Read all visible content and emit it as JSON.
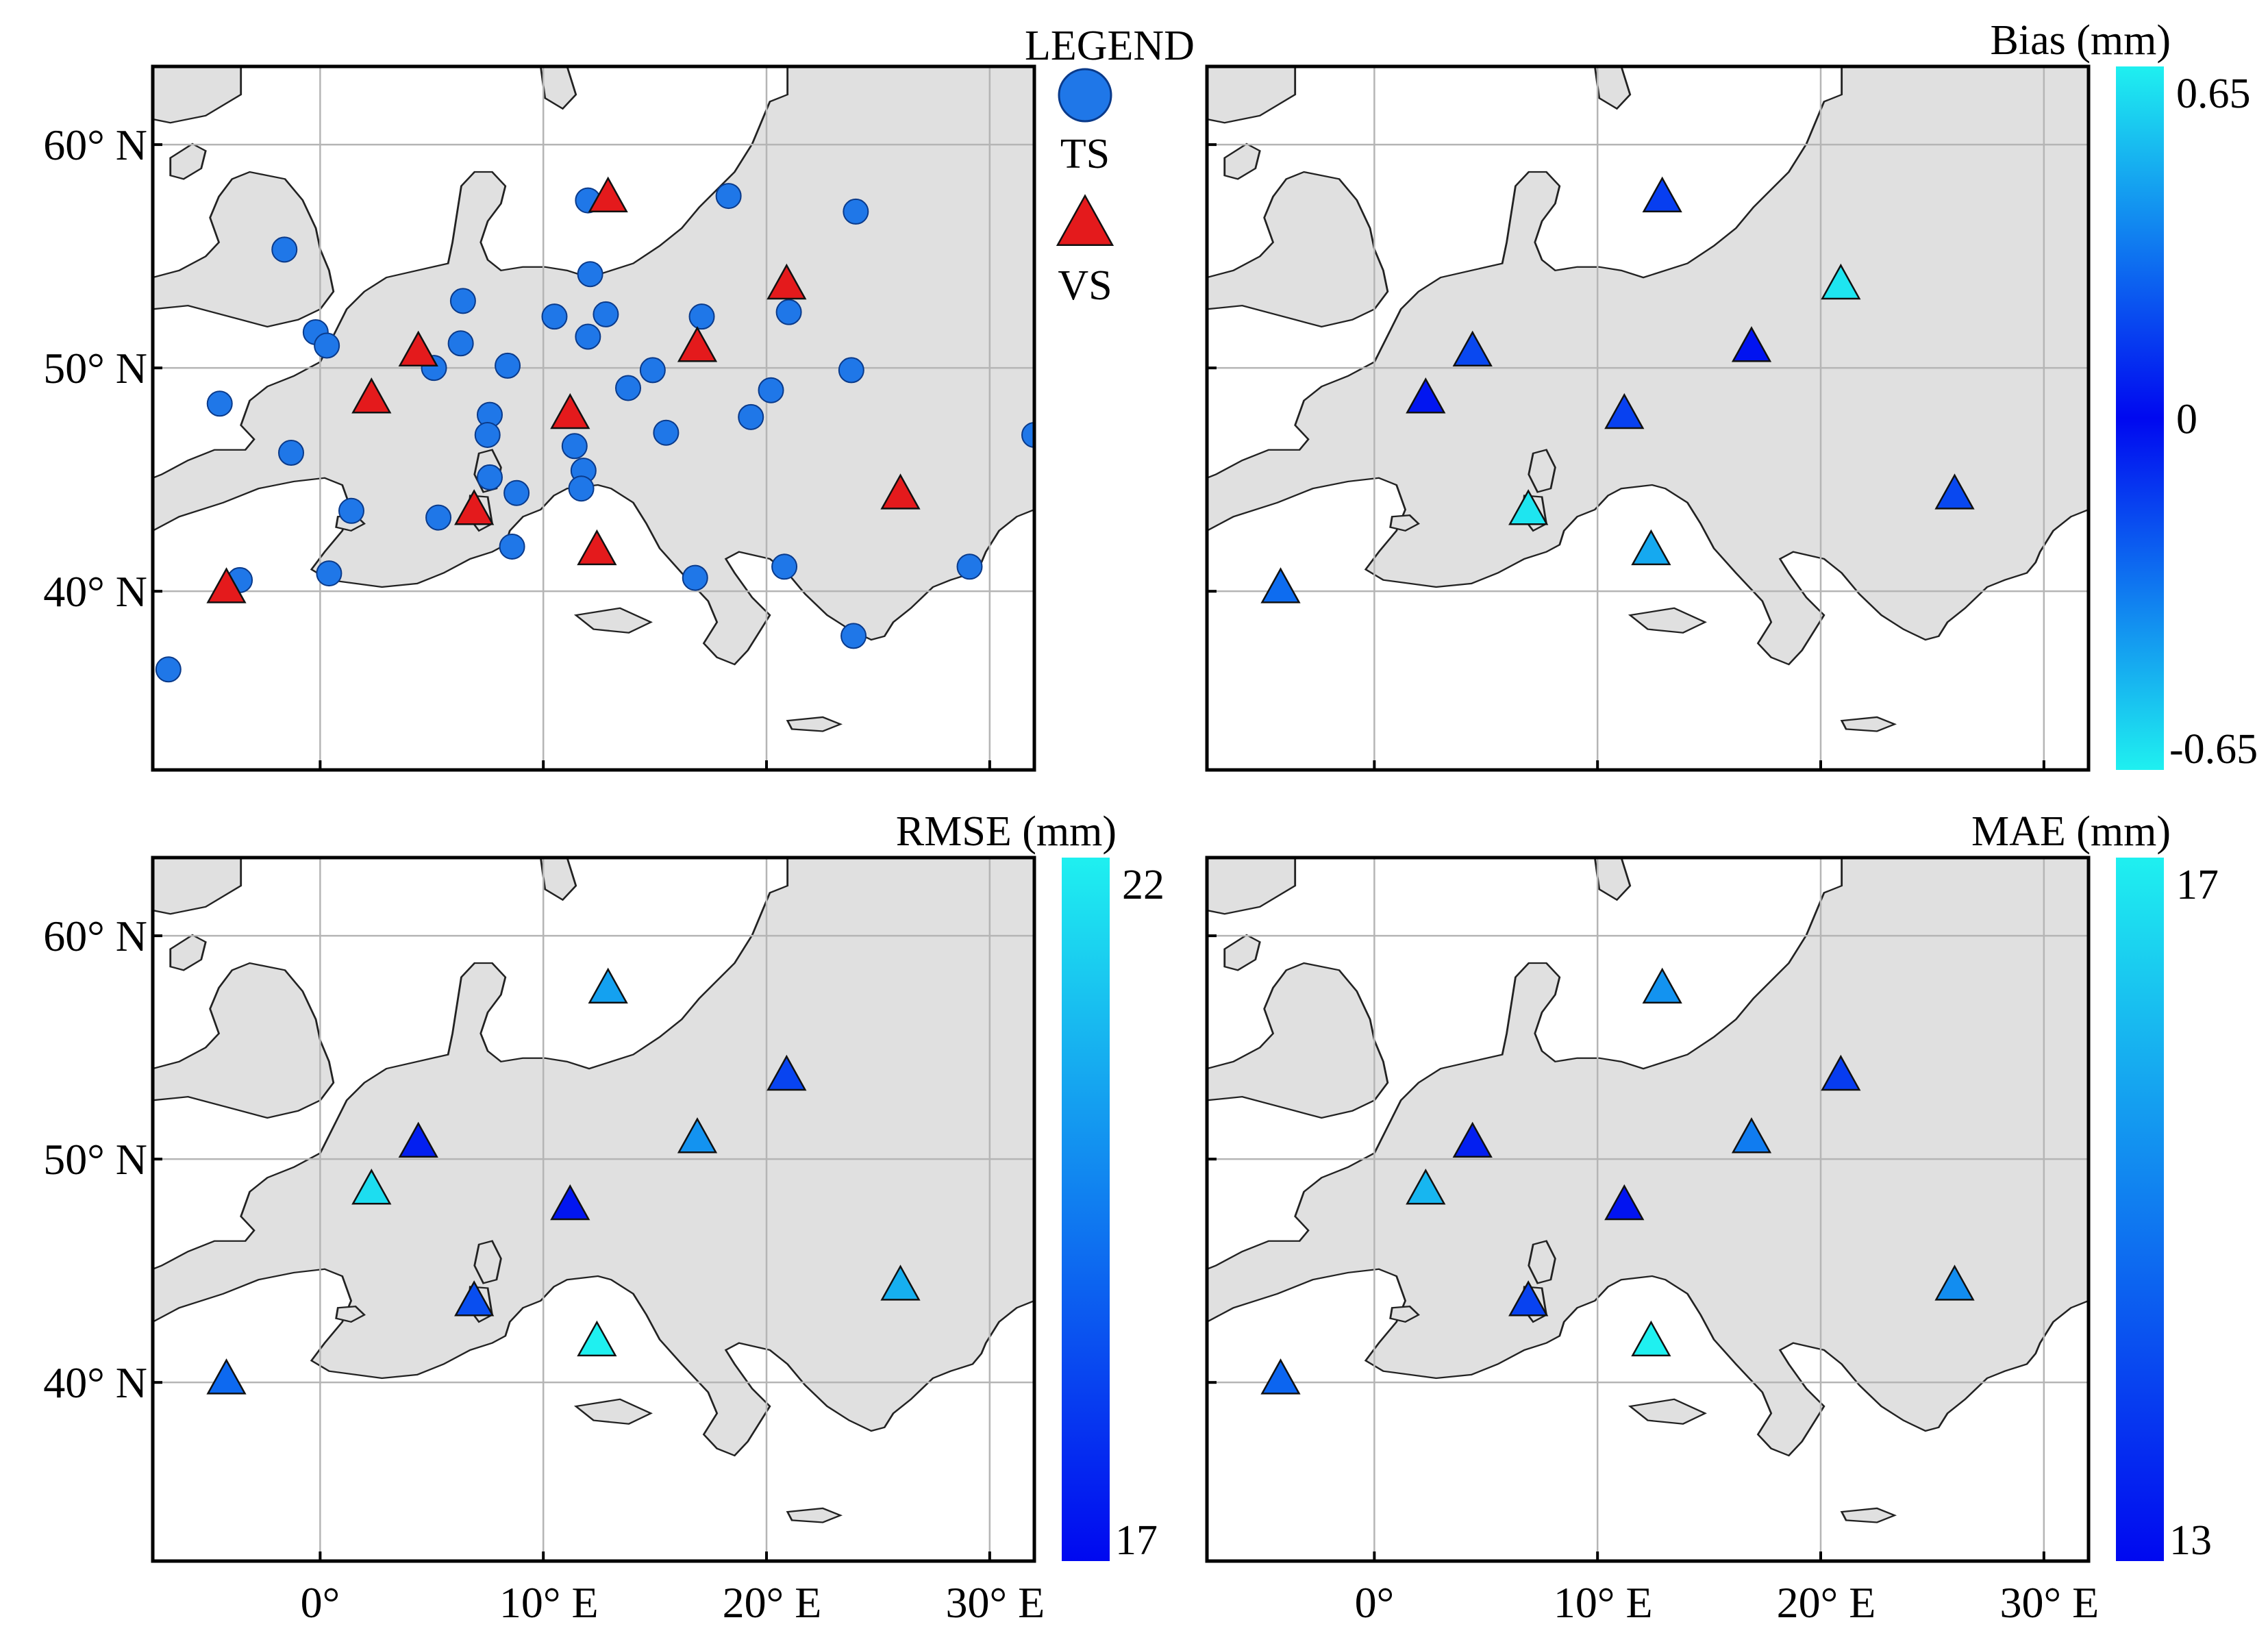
{
  "legend": {
    "title": "LEGEND",
    "ts_label": "TS",
    "vs_label": "VS",
    "ts_color": "#1f77e8",
    "vs_color": "#e41a1c"
  },
  "axes": {
    "lat_labels": [
      "60° N",
      "50° N",
      "40° N"
    ],
    "lon_labels": [
      "0°",
      "10° E",
      "20° E",
      "30° E"
    ]
  },
  "panels": {
    "bias": {
      "title": "Bias (mm)",
      "max": "0.65",
      "mid": "0",
      "min": "-0.65"
    },
    "rmse": {
      "title": "RMSE (mm)",
      "max": "22",
      "min": "17"
    },
    "mae": {
      "title": "MAE (mm)",
      "max": "17",
      "min": "13"
    }
  },
  "colors": {
    "land": "#e0e0e0",
    "sea": "#ffffff",
    "grid": "#b5b5b5",
    "coast": "#222222",
    "scale_low": "#0008f0",
    "scale_high": "#1ff0f0"
  },
  "map_extent": {
    "lon": [
      -7.5,
      32
    ],
    "lat": [
      32,
      63.5
    ]
  },
  "ts_stations": [
    [
      -1.6,
      55.3
    ],
    [
      -0.2,
      51.6
    ],
    [
      0.3,
      51
    ],
    [
      -4.5,
      48.4
    ],
    [
      -1.3,
      46.2
    ],
    [
      1.4,
      43.6
    ],
    [
      0.4,
      40.8
    ],
    [
      -3.6,
      40.5
    ],
    [
      -6.8,
      36.5
    ],
    [
      5.1,
      50
    ],
    [
      6.3,
      51.1
    ],
    [
      6.4,
      53
    ],
    [
      8.4,
      50.1
    ],
    [
      7.6,
      47.9
    ],
    [
      7.5,
      47
    ],
    [
      7.6,
      45.1
    ],
    [
      8.8,
      44.4
    ],
    [
      5.3,
      43.3
    ],
    [
      8.6,
      42
    ],
    [
      10.5,
      52.3
    ],
    [
      12,
      51.4
    ],
    [
      12.8,
      52.4
    ],
    [
      12.1,
      54.2
    ],
    [
      12,
      57.5
    ],
    [
      13.8,
      49.1
    ],
    [
      11.4,
      46.5
    ],
    [
      11.8,
      45.4
    ],
    [
      11.7,
      44.6
    ],
    [
      14.9,
      49.9
    ],
    [
      15.5,
      47.1
    ],
    [
      17.1,
      52.3
    ],
    [
      16.8,
      40.6
    ],
    [
      18.3,
      57.7
    ],
    [
      19.3,
      47.8
    ],
    [
      20.2,
      49
    ],
    [
      21,
      52.5
    ],
    [
      20.8,
      41.1
    ],
    [
      24,
      57
    ],
    [
      23.8,
      49.9
    ],
    [
      23.9,
      38
    ],
    [
      29.1,
      41.1
    ],
    [
      32,
      47
    ]
  ],
  "vs_stations": [
    {
      "lon": -4.2,
      "lat": 40.1,
      "bias": 0.28,
      "rmse": 19.1,
      "mae": 14.6
    },
    {
      "lon": 2.3,
      "lat": 48.6,
      "bias": 0.04,
      "rmse": 21.6,
      "mae": 16.0
    },
    {
      "lon": 4.4,
      "lat": 50.7,
      "bias": 0.18,
      "rmse": 17.5,
      "mae": 13.4
    },
    {
      "lon": 6.9,
      "lat": 43.6,
      "bias": 0.62,
      "rmse": 18.5,
      "mae": 14.0
    },
    {
      "lon": 11.2,
      "lat": 47.9,
      "bias": 0.16,
      "rmse": 17.3,
      "mae": 13.2
    },
    {
      "lon": 12.4,
      "lat": 41.8,
      "bias": 0.45,
      "rmse": 22.0,
      "mae": 17.0
    },
    {
      "lon": 12.9,
      "lat": 57.6,
      "bias": 0.15,
      "rmse": 20.3,
      "mae": 15.4
    },
    {
      "lon": 16.9,
      "lat": 50.9,
      "bias": 0.03,
      "rmse": 20.0,
      "mae": 15.0
    },
    {
      "lon": 20.9,
      "lat": 53.7,
      "bias": 0.62,
      "rmse": 18.3,
      "mae": 13.9
    },
    {
      "lon": 26.0,
      "lat": 44.3,
      "bias": 0.18,
      "rmse": 20.6,
      "mae": 15.3
    }
  ]
}
